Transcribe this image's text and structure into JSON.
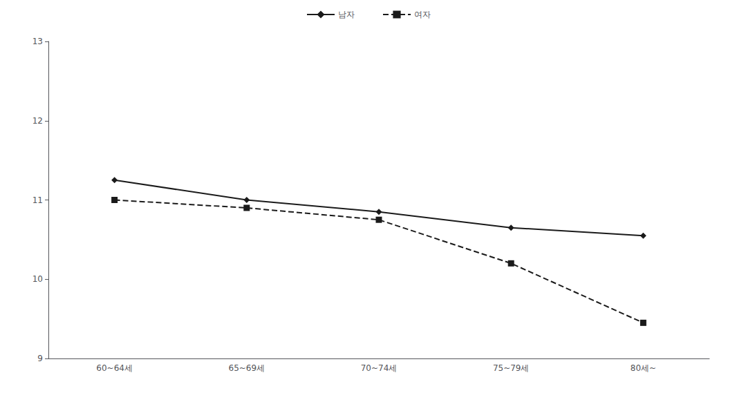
{
  "chart_data": {
    "type": "line",
    "categories": [
      "60~64세",
      "65~69세",
      "70~74세",
      "75~79세",
      "80세~"
    ],
    "series": [
      {
        "name": "남자",
        "color": "#1a1a1a",
        "values": [
          11.25,
          11.0,
          10.85,
          10.65,
          10.55
        ],
        "marker": "diamond",
        "line_style": "solid"
      },
      {
        "name": "여자",
        "color": "#1a1a1a",
        "values": [
          11.0,
          10.9,
          10.75,
          10.2,
          9.45
        ],
        "marker": "square",
        "line_style": "dashed"
      }
    ],
    "ylim": [
      9,
      13
    ],
    "yticks": [
      9,
      10,
      11,
      12,
      13
    ],
    "grid": false,
    "legend": "top"
  }
}
